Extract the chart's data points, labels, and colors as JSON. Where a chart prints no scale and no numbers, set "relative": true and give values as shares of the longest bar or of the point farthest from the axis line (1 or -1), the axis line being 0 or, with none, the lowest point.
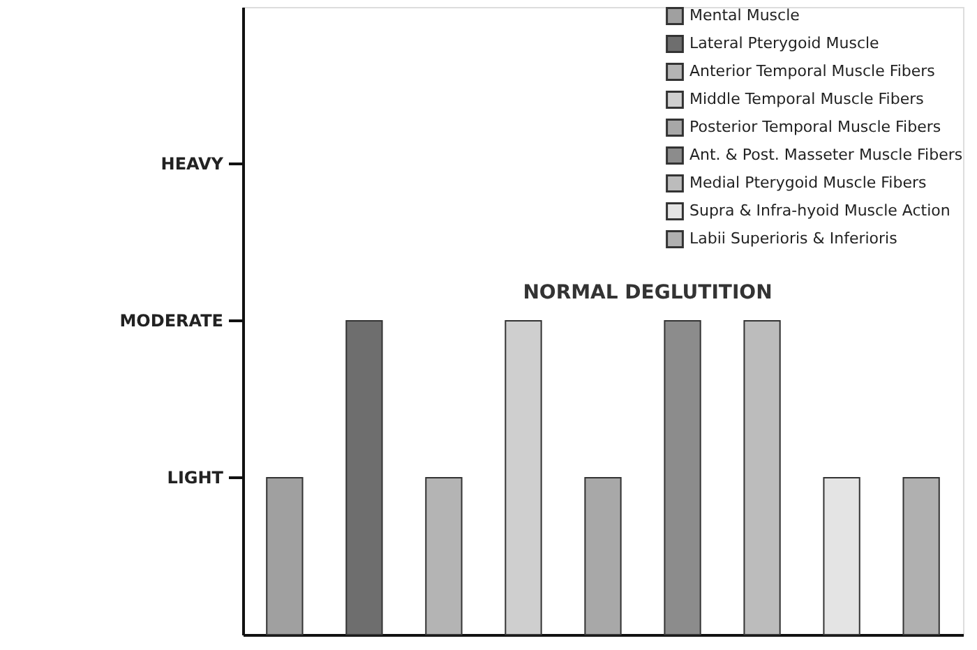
{
  "chart_data": {
    "type": "bar",
    "title": "NORMAL DEGLUTITION",
    "relative": true,
    "categories": [
      null,
      null,
      null,
      null,
      null,
      null,
      null,
      null,
      null
    ],
    "series": [
      {
        "name": "Mental Muscle",
        "color": "#a0a0a0",
        "values": [
          0.5,
          null,
          null,
          null,
          null,
          null,
          null,
          null,
          null
        ]
      },
      {
        "name": "Lateral Pterygoid Muscle",
        "color": "#6e6e6e",
        "values": [
          null,
          1,
          null,
          null,
          null,
          null,
          null,
          null,
          null
        ]
      },
      {
        "name": "Anterior Temporal Muscle Fibers",
        "color": "#b4b4b4",
        "values": [
          null,
          null,
          0.5,
          null,
          null,
          null,
          null,
          null,
          null
        ]
      },
      {
        "name": "Middle Temporal Muscle Fibers",
        "color": "#cfcfcf",
        "values": [
          null,
          null,
          null,
          1,
          null,
          null,
          null,
          null,
          null
        ]
      },
      {
        "name": "Posterior Temporal Muscle Fibers",
        "color": "#a8a8a8",
        "values": [
          null,
          null,
          null,
          null,
          0.5,
          null,
          null,
          null,
          null
        ]
      },
      {
        "name": "Ant. & Post. Masseter Muscle Fibers",
        "color": "#8c8c8c",
        "values": [
          null,
          null,
          null,
          null,
          null,
          1,
          null,
          null,
          null
        ]
      },
      {
        "name": "Medial Pterygoid Muscle Fibers",
        "color": "#bcbcbc",
        "values": [
          null,
          null,
          null,
          null,
          null,
          null,
          1,
          null,
          null
        ]
      },
      {
        "name": "Supra & Infra-hyoid Muscle Action",
        "color": "#e4e4e4",
        "values": [
          null,
          null,
          null,
          null,
          null,
          null,
          null,
          0.5,
          null
        ]
      },
      {
        "name": "Labii Superioris & Inferioris",
        "color": "#b0b0b0",
        "values": [
          null,
          null,
          null,
          null,
          null,
          null,
          null,
          null,
          0.5
        ]
      }
    ],
    "annotations": [
      "LIGHT",
      "MODERATE",
      "HEAVY"
    ],
    "stacked": true,
    "grid": false,
    "legend": "top right"
  }
}
